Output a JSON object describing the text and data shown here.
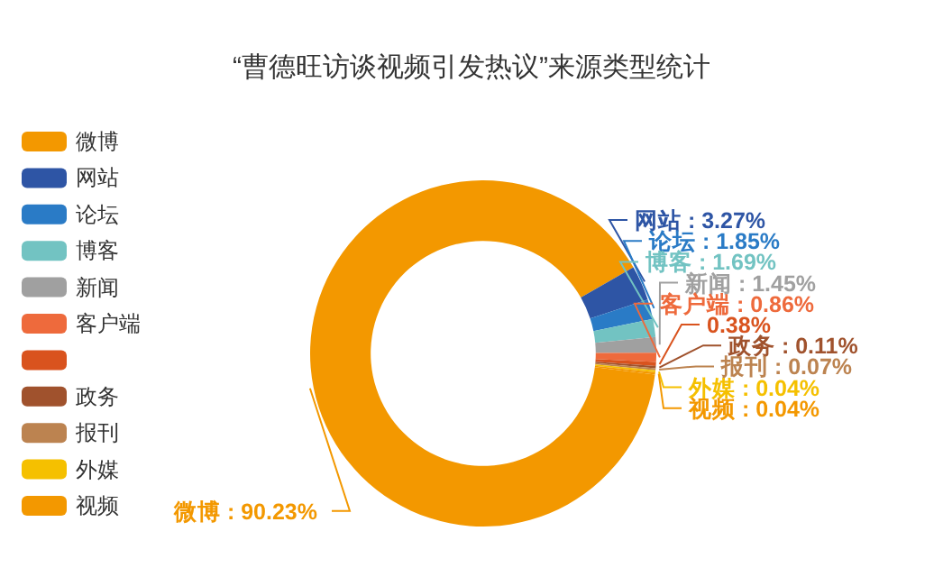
{
  "chart_data": {
    "type": "donut",
    "title": "“曹德旺访谈视频引发热议”来源类型统计",
    "categories": [
      "微博",
      "网站",
      "论坛",
      "博客",
      "新闻",
      "客户端",
      null,
      "政务",
      "报刊",
      "外媒",
      "视频"
    ],
    "values": [
      90.23,
      3.27,
      1.85,
      1.69,
      1.45,
      0.86,
      0.38,
      0.11,
      0.07,
      0.04,
      0.04
    ],
    "colors": [
      "#f39800",
      "#2e55a5",
      "#2a7bc6",
      "#72c3c2",
      "#a0a0a0",
      "#ee6a3c",
      "#d9531e",
      "#a0522d",
      "#bc8350",
      "#f5c000",
      "#f39800"
    ],
    "value_labels": [
      "微博 : 90.23%",
      "网站 : 3.27%",
      "论坛 : 1.85%",
      "博客 : 1.69%",
      "新闻 : 1.45%",
      "客户端 : 0.86%",
      "0.38%",
      "政务 : 0.11%",
      "报刊 : 0.07%",
      "外媒 : 0.04%",
      "视频 : 0.04%"
    ],
    "legend": "left"
  }
}
